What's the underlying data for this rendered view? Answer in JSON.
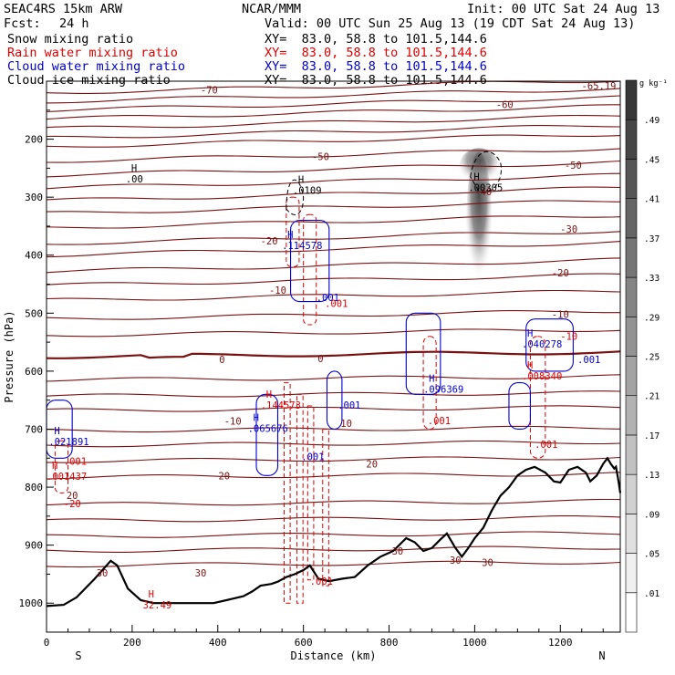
{
  "header": {
    "model": "SEAC4RS 15km ARW",
    "org": "NCAR/MMM",
    "init": "Init: 00 UTC Sat 24 Aug 13",
    "fcst_label": "Fcst:",
    "fcst_value": "24 h",
    "valid": "Valid: 00 UTC Sun 25 Aug 13 (19 CDT Sat 24 Aug 13)",
    "fields": [
      {
        "name": "Snow mixing ratio",
        "xy": "XY=  83.0, 58.8 to 101.5,144.6",
        "color": "#000000"
      },
      {
        "name": "Rain water mixing ratio",
        "xy": "XY=  83.0, 58.8 to 101.5,144.6",
        "color": "#e00000"
      },
      {
        "name": "Cloud water mixing ratio",
        "xy": "XY=  83.0, 58.8 to 101.5,144.6",
        "color": "#0000d0"
      },
      {
        "name": "Cloud ice mixing ratio",
        "xy": "XY=  83.0, 58.8 to 101.5,144.6",
        "color": "#000000"
      }
    ]
  },
  "chart_data": {
    "type": "cross-section",
    "xlabel": "Distance (km)",
    "ylabel": "Pressure (hPa)",
    "xlim": [
      0,
      1340
    ],
    "ylim": [
      1050,
      100
    ],
    "x_ticks": [
      0,
      200,
      400,
      600,
      800,
      1000,
      1200
    ],
    "y_ticks": [
      200,
      300,
      400,
      500,
      600,
      700,
      800,
      900,
      1000
    ],
    "end_labels": {
      "left": "S",
      "right": "N"
    },
    "colorbar": {
      "unit": "g kg⁻¹",
      "ticks": [
        ".01",
        ".05",
        ".09",
        ".13",
        ".17",
        ".21",
        ".25",
        ".29",
        ".33",
        ".37",
        ".41",
        ".45",
        ".49"
      ]
    },
    "terrain": [
      [
        0,
        1005
      ],
      [
        40,
        1003
      ],
      [
        70,
        990
      ],
      [
        110,
        960
      ],
      [
        150,
        927
      ],
      [
        165,
        935
      ],
      [
        190,
        975
      ],
      [
        220,
        995
      ],
      [
        250,
        1000
      ],
      [
        300,
        1000
      ],
      [
        390,
        1000
      ],
      [
        420,
        995
      ],
      [
        460,
        988
      ],
      [
        480,
        980
      ],
      [
        500,
        970
      ],
      [
        525,
        967
      ],
      [
        540,
        963
      ],
      [
        560,
        955
      ],
      [
        580,
        950
      ],
      [
        600,
        943
      ],
      [
        615,
        935
      ],
      [
        635,
        958
      ],
      [
        660,
        962
      ],
      [
        690,
        958
      ],
      [
        720,
        955
      ],
      [
        750,
        935
      ],
      [
        780,
        920
      ],
      [
        810,
        910
      ],
      [
        840,
        888
      ],
      [
        860,
        895
      ],
      [
        880,
        910
      ],
      [
        900,
        905
      ],
      [
        920,
        890
      ],
      [
        935,
        880
      ],
      [
        955,
        905
      ],
      [
        970,
        920
      ],
      [
        985,
        905
      ],
      [
        1000,
        888
      ],
      [
        1020,
        870
      ],
      [
        1040,
        840
      ],
      [
        1060,
        815
      ],
      [
        1080,
        800
      ],
      [
        1100,
        780
      ],
      [
        1120,
        770
      ],
      [
        1140,
        765
      ],
      [
        1165,
        775
      ],
      [
        1185,
        790
      ],
      [
        1200,
        792
      ],
      [
        1220,
        770
      ],
      [
        1240,
        765
      ],
      [
        1260,
        775
      ],
      [
        1270,
        790
      ],
      [
        1285,
        780
      ],
      [
        1300,
        760
      ],
      [
        1310,
        750
      ],
      [
        1318,
        760
      ],
      [
        1326,
        768
      ],
      [
        1330,
        765
      ],
      [
        1336,
        790
      ],
      [
        1340,
        810
      ]
    ],
    "temperature_isotherms": [
      {
        "label": "-70",
        "p0": 120,
        "slope": -22
      },
      {
        "label": "",
        "p0": 135,
        "slope": -22
      },
      {
        "label": "-60",
        "p0": 150,
        "slope": -22
      },
      {
        "label": "",
        "p0": 165,
        "slope": -22
      },
      {
        "label": "",
        "p0": 182,
        "slope": -22
      },
      {
        "label": "-50",
        "p0": 198,
        "slope": -22
      },
      {
        "label": "",
        "p0": 213,
        "slope": -22
      },
      {
        "label": "",
        "p0": 238,
        "slope": -22
      },
      {
        "label": "",
        "p0": 262,
        "slope": -22
      },
      {
        "label": "-40",
        "p0": 284,
        "slope": -22
      },
      {
        "label": "",
        "p0": 306,
        "slope": -22
      },
      {
        "label": "",
        "p0": 328,
        "slope": -22
      },
      {
        "label": "-30",
        "p0": 353,
        "slope": -22
      },
      {
        "label": "",
        "p0": 380,
        "slope": -22
      },
      {
        "label": "-20",
        "p0": 400,
        "slope": -22
      },
      {
        "label": "",
        "p0": 428,
        "slope": -20
      },
      {
        "label": "-10",
        "p0": 452,
        "slope": -18
      },
      {
        "label": "",
        "p0": 478,
        "slope": -16
      },
      {
        "label": "",
        "p0": 510,
        "slope": -14
      },
      {
        "label": "",
        "p0": 538,
        "slope": -10
      },
      {
        "label": "0",
        "p0": 575,
        "slope": -8,
        "bold": true
      },
      {
        "label": "",
        "p0": 615,
        "slope": -6
      },
      {
        "label": "",
        "p0": 643,
        "slope": -6
      },
      {
        "label": "10",
        "p0": 668,
        "slope": -6
      },
      {
        "label": "",
        "p0": 703,
        "slope": -6
      },
      {
        "label": "",
        "p0": 728,
        "slope": -6
      },
      {
        "label": "",
        "p0": 755,
        "slope": -6
      },
      {
        "label": "20",
        "p0": 783,
        "slope": -6
      },
      {
        "label": "",
        "p0": 830,
        "slope": -6
      },
      {
        "label": "",
        "p0": 858,
        "slope": -6
      },
      {
        "label": "",
        "p0": 885,
        "slope": -6
      },
      {
        "label": "30",
        "p0": 910,
        "slope": -6
      },
      {
        "label": "",
        "p0": 935,
        "slope": -6
      }
    ],
    "isotherm_labels": [
      {
        "text": "-70",
        "x": 380,
        "p": 115
      },
      {
        "text": "-60",
        "x": 1070,
        "p": 140
      },
      {
        "text": "-65.19",
        "x": 1290,
        "p": 108
      },
      {
        "text": "-50",
        "x": 640,
        "p": 230
      },
      {
        "text": "-50",
        "x": 1230,
        "p": 245
      },
      {
        "text": "-40",
        "x": 1020,
        "p": 290
      },
      {
        "text": "-30",
        "x": 1220,
        "p": 355
      },
      {
        "text": "-20",
        "x": 520,
        "p": 375
      },
      {
        "text": "-20",
        "x": 1200,
        "p": 430
      },
      {
        "text": "-10",
        "x": 540,
        "p": 460
      },
      {
        "text": "-10",
        "x": 1200,
        "p": 502
      },
      {
        "text": "0",
        "x": 410,
        "p": 580
      },
      {
        "text": "0",
        "x": 640,
        "p": 578
      },
      {
        "text": "-10",
        "x": 435,
        "p": 686
      },
      {
        "text": "10",
        "x": 700,
        "p": 690
      },
      {
        "text": "20",
        "x": 415,
        "p": 780
      },
      {
        "text": "20",
        "x": 760,
        "p": 760
      },
      {
        "text": "30",
        "x": 130,
        "p": 948
      },
      {
        "text": "30",
        "x": 360,
        "p": 948
      },
      {
        "text": "30",
        "x": 820,
        "p": 910
      },
      {
        "text": "30",
        "x": 955,
        "p": 926
      },
      {
        "text": "30",
        "x": 1030,
        "p": 930
      },
      {
        "text": "20",
        "x": 60,
        "p": 814
      }
    ],
    "maxima": [
      {
        "text": "H",
        "value": ".00",
        "x": 185,
        "p": 265,
        "color": "#000000"
      },
      {
        "text": "H",
        "value": ".0109",
        "x": 575,
        "p": 285,
        "color": "#000000"
      },
      {
        "text": "H",
        "value": ".114578",
        "x": 550,
        "p": 380,
        "color": "#0000d0"
      },
      {
        "text": "H",
        "value": ".00305",
        "x": 985,
        "p": 280,
        "color": "#000000"
      },
      {
        "text": "H",
        "value": ".040278",
        "x": 1110,
        "p": 550,
        "color": "#0000d0"
      },
      {
        "text": "H",
        "value": ".008340",
        "x": 1110,
        "p": 605,
        "color": "#e00000"
      },
      {
        "text": "H",
        "value": ".096369",
        "x": 880,
        "p": 628,
        "color": "#0000d0"
      },
      {
        "text": "H",
        "value": ".144573",
        "x": 500,
        "p": 655,
        "color": "#e00000"
      },
      {
        "text": "H",
        "value": ".065676",
        "x": 470,
        "p": 695,
        "color": "#0000d0"
      },
      {
        "text": "H",
        "value": ".021891",
        "x": 5,
        "p": 718,
        "color": "#0000d0"
      },
      {
        "text": "H",
        "value": ".001437",
        "x": 0,
        "p": 778,
        "color": "#e00000"
      },
      {
        "text": "H",
        "value": "32.49",
        "x": 225,
        "p": 1000,
        "color": "#e00000"
      }
    ],
    "contour_labels": [
      {
        "text": ".001",
        "x": 630,
        "p": 473,
        "color": "#0000d0"
      },
      {
        "text": ".001",
        "x": 650,
        "p": 483,
        "color": "#e00000"
      },
      {
        "text": ".001",
        "x": 680,
        "p": 658,
        "color": "#0000d0"
      },
      {
        "text": ".001",
        "x": 595,
        "p": 747,
        "color": "#0000d0"
      },
      {
        "text": ".001",
        "x": 615,
        "p": 962,
        "color": "#e00000"
      },
      {
        "text": ".001",
        "x": 890,
        "p": 685,
        "color": "#e00000"
      },
      {
        "text": ".001",
        "x": 1240,
        "p": 580,
        "color": "#0000d0"
      },
      {
        "text": ".001",
        "x": 1140,
        "p": 726,
        "color": "#e00000"
      },
      {
        "text": ".001",
        "x": 40,
        "p": 755,
        "color": "#e00000"
      },
      {
        "text": "-10",
        "x": 1200,
        "p": 540,
        "color": "#e00000"
      },
      {
        "text": "-20",
        "x": 40,
        "p": 828,
        "color": "#e00000"
      }
    ]
  }
}
